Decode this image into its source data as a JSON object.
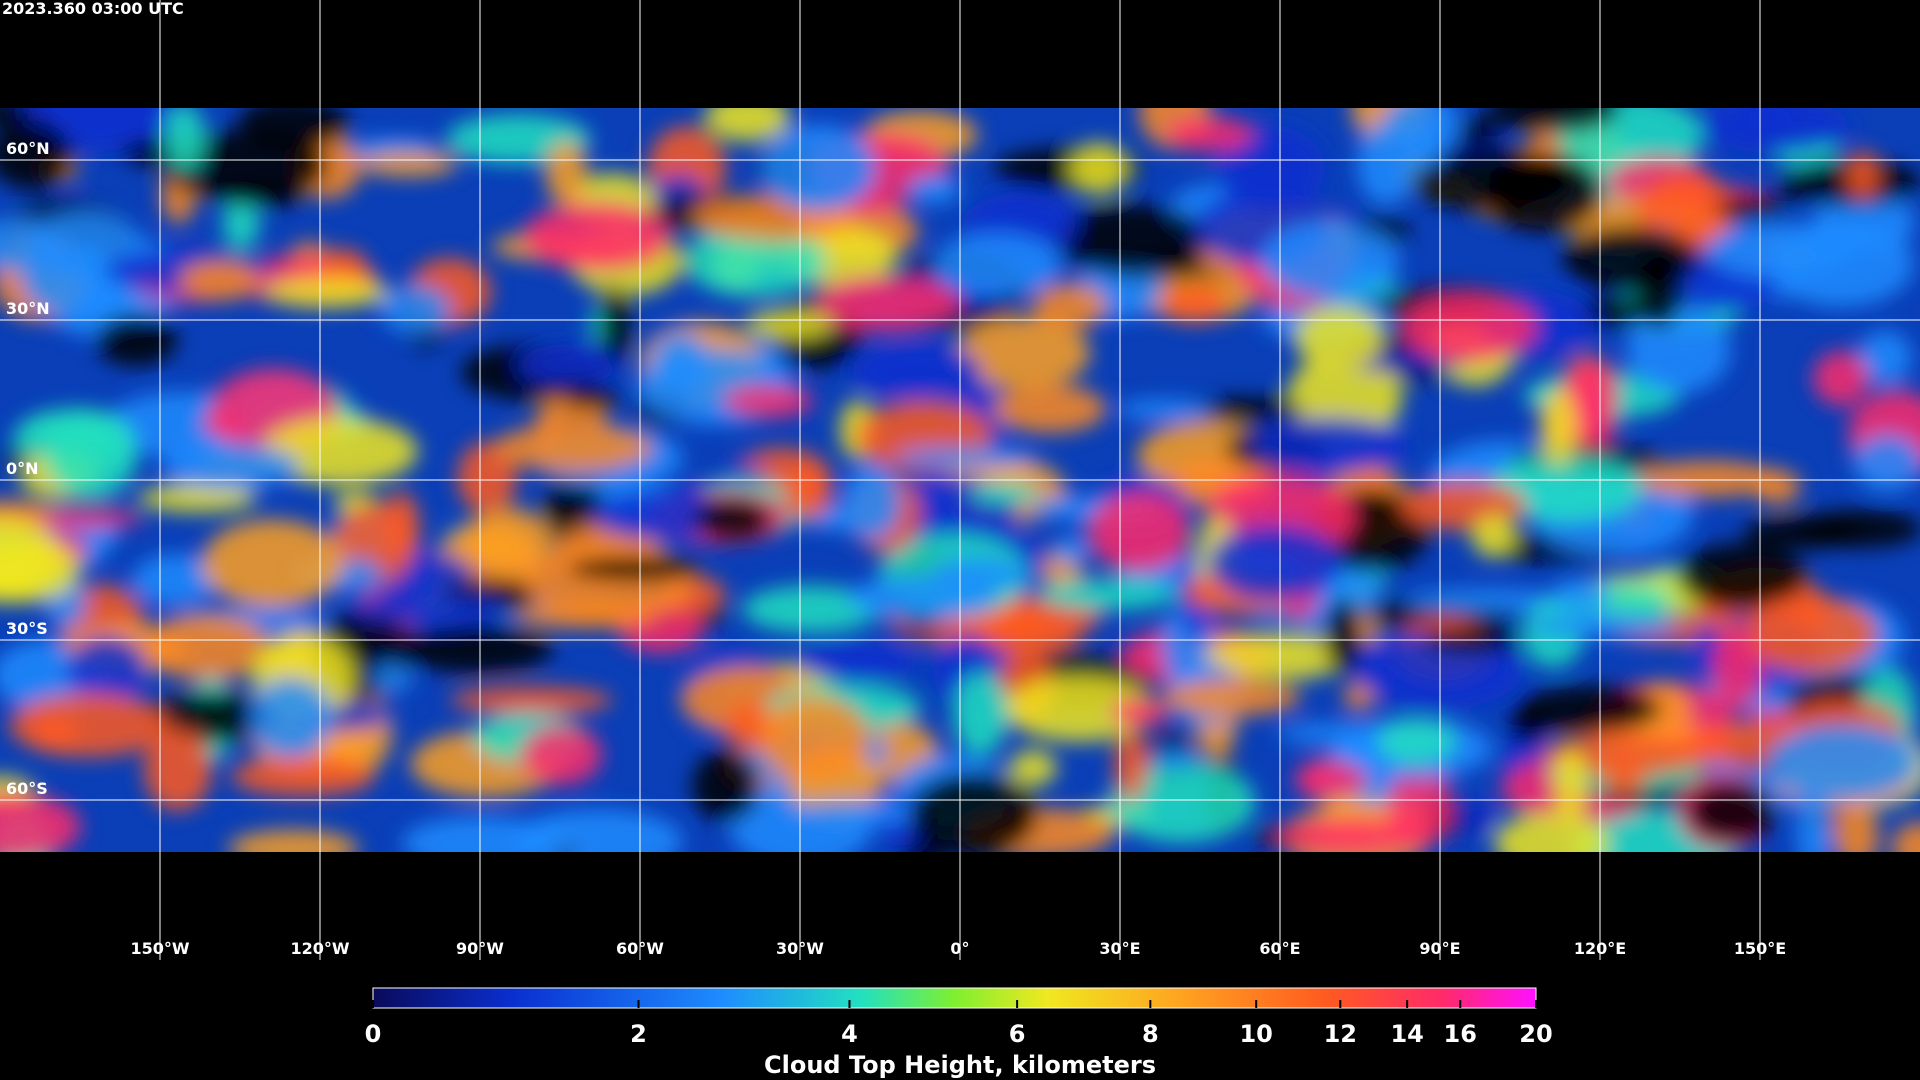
{
  "header": {
    "timestamp": "2023.360 03:00 UTC"
  },
  "map": {
    "lat_ticks": [
      {
        "value": 60,
        "label": "60°N"
      },
      {
        "value": 30,
        "label": "30°N"
      },
      {
        "value": 0,
        "label": "0°N"
      },
      {
        "value": -30,
        "label": "30°S"
      },
      {
        "value": -60,
        "label": "60°S"
      }
    ],
    "lon_ticks": [
      {
        "value": -150,
        "label": "150°W"
      },
      {
        "value": -120,
        "label": "120°W"
      },
      {
        "value": -90,
        "label": "90°W"
      },
      {
        "value": -60,
        "label": "60°W"
      },
      {
        "value": -30,
        "label": "30°W"
      },
      {
        "value": 0,
        "label": "0°"
      },
      {
        "value": 30,
        "label": "30°E"
      },
      {
        "value": 60,
        "label": "60°E"
      },
      {
        "value": 90,
        "label": "90°E"
      },
      {
        "value": 120,
        "label": "120°E"
      },
      {
        "value": 150,
        "label": "150°E"
      }
    ]
  },
  "colorbar": {
    "ticks": [
      0,
      2,
      4,
      6,
      8,
      10,
      12,
      14,
      16,
      20
    ],
    "label": "Cloud Top Height, kilometers"
  }
}
